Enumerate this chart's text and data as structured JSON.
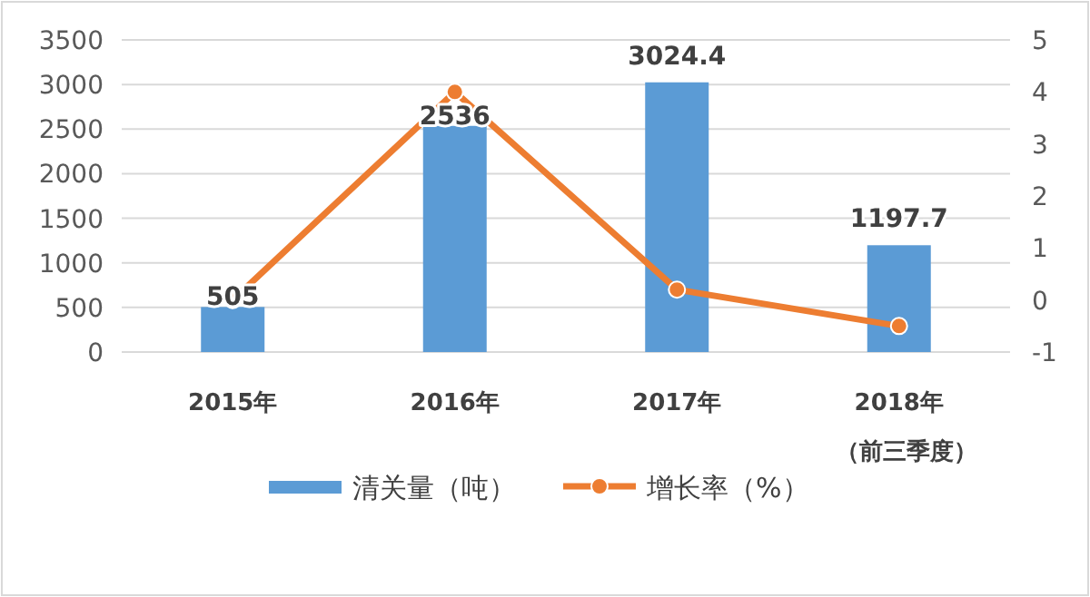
{
  "chart_data": {
    "type": "bar",
    "categories": [
      "2015年",
      "2016年",
      "2017年",
      "2018年（前三季度）"
    ],
    "series": [
      {
        "name": "清关量（吨）",
        "color": "#5b9bd5",
        "values": [
          505,
          2536,
          3024.4,
          1197.7
        ],
        "data_labels": true
      },
      {
        "name": "增长率（%）",
        "type": "line",
        "axis": "y2",
        "color": "#ed7d31",
        "marker": "circle",
        "values": [
          0,
          4,
          0.2,
          -0.5
        ]
      }
    ],
    "ylim": [
      0,
      3500
    ],
    "yticks": [
      0,
      500,
      1000,
      1500,
      2000,
      2500,
      3000,
      3500
    ],
    "y2lim": [
      -1,
      5
    ],
    "y2ticks": [
      -1,
      0,
      1,
      2,
      3,
      4,
      5
    ],
    "grid": "y",
    "legend": "bottom"
  }
}
